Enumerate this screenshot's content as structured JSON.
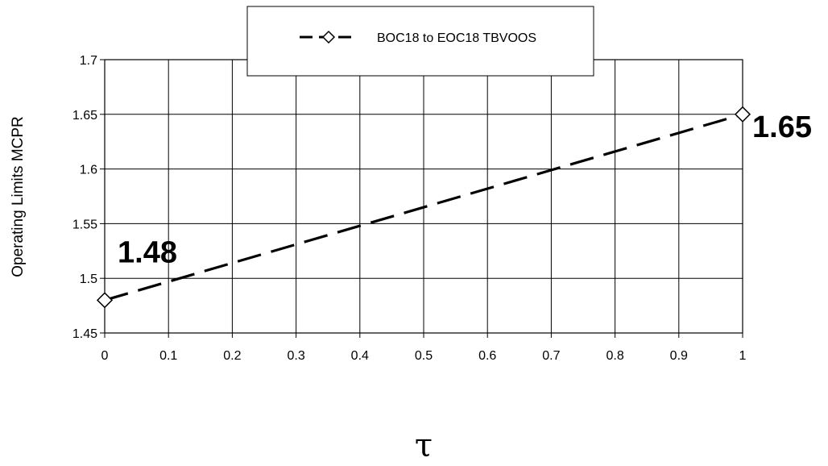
{
  "chart_data": {
    "type": "line",
    "xlabel": "τ",
    "ylabel": "Operating Limits MCPR",
    "xlim": [
      0,
      1
    ],
    "ylim": [
      1.45,
      1.7
    ],
    "x_ticks": [
      "0",
      "0.1",
      "0.2",
      "0.3",
      "0.4",
      "0.5",
      "0.6",
      "0.7",
      "0.8",
      "0.9",
      "1"
    ],
    "y_ticks": [
      "1.45",
      "1.5",
      "1.55",
      "1.6",
      "1.65",
      "1.7"
    ],
    "grid": true,
    "legend_position": "top-center",
    "series": [
      {
        "name": "BOC18 to EOC18 TBVOOS",
        "x": [
          0,
          1
        ],
        "y": [
          1.48,
          1.65
        ],
        "line_style": "dashed",
        "marker": "diamond",
        "color": "#000000"
      }
    ],
    "annotations": [
      {
        "text": "1.48",
        "x": 0,
        "y": 1.48
      },
      {
        "text": "1.65",
        "x": 1,
        "y": 1.65
      }
    ]
  }
}
